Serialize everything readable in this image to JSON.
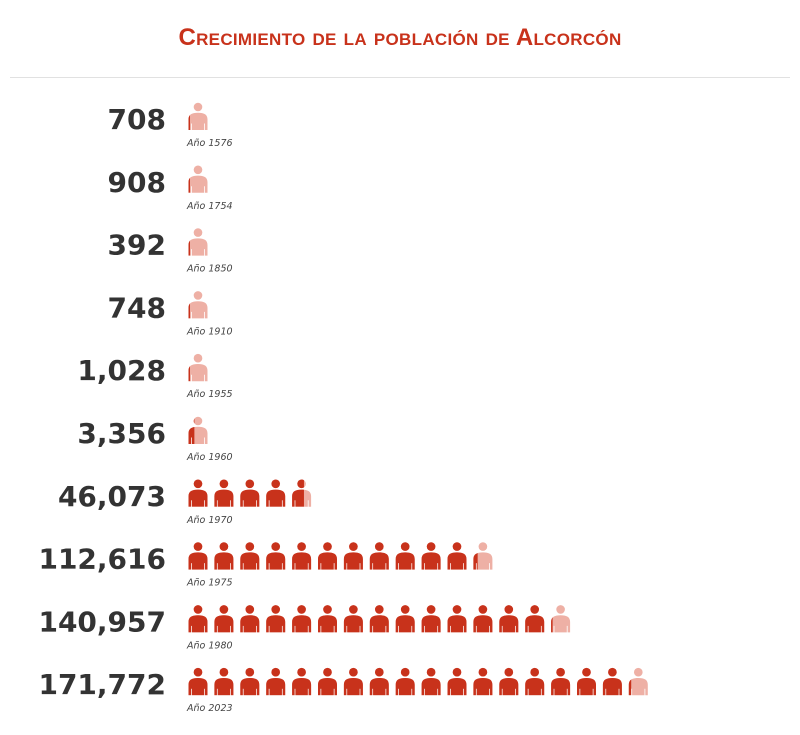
{
  "title": "Crecimiento de la población de Alcorcón",
  "colors": {
    "accent": "#c8321b",
    "icon_full": "#c8321b",
    "icon_faded": "#eeb0a5",
    "value_text": "#333333",
    "year_text": "#444444",
    "divider": "#e1e1e1"
  },
  "icon": "person-icon",
  "chart_data": {
    "type": "pictogram",
    "unit_per_icon": 10000,
    "categories": [
      "Año 1576",
      "Año 1754",
      "Año 1850",
      "Año 1910",
      "Año 1955",
      "Año 1960",
      "Año 1970",
      "Año 1975",
      "Año 1980",
      "Año 2023"
    ],
    "values": [
      708,
      908,
      392,
      748,
      1028,
      3356,
      46073,
      112616,
      140957,
      171772
    ],
    "value_labels": [
      "708",
      "908",
      "392",
      "748",
      "1,028",
      "3,356",
      "46,073",
      "112,616",
      "140,957",
      "171,772"
    ]
  }
}
